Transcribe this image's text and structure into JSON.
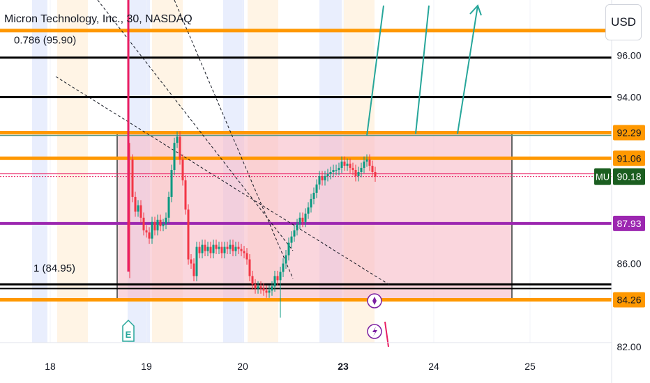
{
  "header": {
    "symbol_title": "Micron Technology, Inc., 30, NASDAQ",
    "currency_button": "USD"
  },
  "price_scale": {
    "ticks": [
      "96.00",
      "94.00",
      "92.29",
      "91.06",
      "87.93",
      "86.00",
      "84.26",
      "82.00"
    ],
    "last_price_symbol": "MU",
    "last_price": "90.18"
  },
  "colors": {
    "orange": "#ff9800",
    "purple": "#9c27b0",
    "teal": "#26a69a",
    "red": "#e91e63",
    "black": "#000000",
    "green_badge": "#1b5e20",
    "range_fill": "#f8bbc8"
  },
  "chart_data": {
    "type": "candlestick",
    "x_ticks": [
      "18",
      "19",
      "20",
      "23",
      "24",
      "25"
    ],
    "y_range": [
      81.7,
      97.5
    ],
    "fib_labels": [
      {
        "text": "0.786 (95.90)",
        "price": 95.9
      },
      {
        "text": "1 (84.95)",
        "price": 84.95
      }
    ],
    "horizontal_levels": [
      {
        "price": 97.2,
        "color": "orange"
      },
      {
        "price": 95.9,
        "color": "black"
      },
      {
        "price": 94.0,
        "color": "black"
      },
      {
        "price": 92.29,
        "color": "orange"
      },
      {
        "price": 91.06,
        "color": "orange"
      },
      {
        "price": 90.18,
        "color": "red_dotted"
      },
      {
        "price": 87.93,
        "color": "purple"
      },
      {
        "price": 85.0,
        "color": "black"
      },
      {
        "price": 84.26,
        "color": "orange"
      }
    ],
    "range_box": {
      "from": "19",
      "to": "25",
      "high": 92.29,
      "low": 84.26
    },
    "last_price": 90.18,
    "markers": [
      "E",
      "dividend",
      "split"
    ]
  }
}
